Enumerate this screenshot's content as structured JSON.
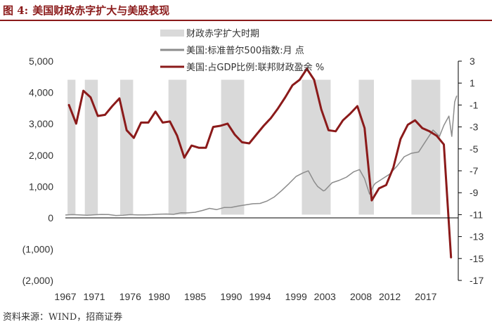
{
  "figure": {
    "number": "图 4:",
    "title": "美国财政赤字扩大与美股表现",
    "source": "资料来源：WIND，招商证券"
  },
  "chart_data": {
    "type": "line",
    "title": "美国财政赤字扩大与美股表现",
    "xlabel": "",
    "ylabel_left": "",
    "ylabel_right": "",
    "xlim": [
      1967,
      2021.5
    ],
    "x_ticks": [
      1967,
      1971,
      1976,
      1980,
      1985,
      1990,
      1994,
      1999,
      2003,
      2008,
      2012,
      2017
    ],
    "y_left_ticks": [
      5000,
      4000,
      3000,
      2000,
      1000,
      0,
      -1000,
      -2000
    ],
    "y_left_tick_labels": [
      "5,000",
      "4,000",
      "3,000",
      "2,000",
      "1,000",
      "0",
      "(1,000)",
      "(2,000)"
    ],
    "ylim_left": [
      -2000,
      5000
    ],
    "y_right_ticks": [
      3,
      1,
      -1,
      -3,
      -5,
      -7,
      -9,
      -11,
      -13,
      -15,
      -17
    ],
    "ylim_right": [
      -17,
      3
    ],
    "legend_position": "top-center",
    "legend": [
      "财政赤字扩大时期",
      "美国:标准普尔500指数:月 点",
      "美国:占GDP比例:联邦财政盈余 %"
    ],
    "colors": {
      "deficit_band": "#d9d9d9",
      "sp500": "#8c8c8c",
      "surplus": "#8b1a1a",
      "negative_tick": "#c00000"
    },
    "deficit_periods": [
      [
        1967.3,
        1968.4
      ],
      [
        1969.7,
        1971.5
      ],
      [
        1974.6,
        1976.4
      ],
      [
        1981.3,
        1983.8
      ],
      [
        1988.6,
        1991.8
      ],
      [
        1999.8,
        2003.8
      ],
      [
        2007.7,
        2009.8
      ],
      [
        2015.0,
        2019.0
      ]
    ],
    "series": [
      {
        "name": "美国:占GDP比例:联邦财政盈余 %",
        "axis": "right",
        "x": [
          1967.5,
          1968.5,
          1969.5,
          1970.5,
          1971.5,
          1972.5,
          1973.5,
          1974.5,
          1975.5,
          1976.5,
          1977.5,
          1978.5,
          1979.5,
          1980.5,
          1981.5,
          1982.5,
          1983.5,
          1984.5,
          1985.5,
          1986.5,
          1987.5,
          1988.5,
          1989.5,
          1990.5,
          1991.5,
          1992.5,
          1993.5,
          1994.5,
          1995.5,
          1996.5,
          1997.5,
          1998.5,
          1999.5,
          2000.5,
          2001.5,
          2002.5,
          2003.5,
          2004.5,
          2005.5,
          2006.5,
          2007.5,
          2008.5,
          2009.5,
          2010.5,
          2011.5,
          2012.5,
          2013.5,
          2014.5,
          2015.5,
          2016.5,
          2017.5,
          2018.5,
          2019.5,
          2020.5
        ],
        "values": [
          -1.0,
          -2.7,
          0.3,
          -0.3,
          -2.0,
          -1.9,
          -1.1,
          -0.4,
          -3.3,
          -4.0,
          -2.6,
          -2.6,
          -1.6,
          -2.6,
          -2.5,
          -3.8,
          -5.8,
          -4.7,
          -4.9,
          -4.9,
          -3.0,
          -2.9,
          -2.7,
          -3.7,
          -4.4,
          -4.5,
          -3.7,
          -2.9,
          -2.2,
          -1.3,
          -0.3,
          0.8,
          1.3,
          2.3,
          1.3,
          -1.4,
          -3.3,
          -3.4,
          -2.4,
          -1.8,
          -1.1,
          -3.1,
          -9.7,
          -8.6,
          -8.3,
          -6.7,
          -4.1,
          -2.8,
          -2.4,
          -3.1,
          -3.4,
          -3.8,
          -4.6,
          -14.9
        ]
      },
      {
        "name": "美国:标准普尔500指数:月 点",
        "axis": "left",
        "x": [
          1967,
          1968,
          1969,
          1970,
          1971,
          1972,
          1973,
          1974,
          1975,
          1976,
          1977,
          1978,
          1979,
          1980,
          1981,
          1982,
          1983,
          1984,
          1985,
          1986,
          1987,
          1988,
          1989,
          1990,
          1991,
          1992,
          1993,
          1994,
          1995,
          1996,
          1997,
          1998,
          1999,
          2000,
          2000.7,
          2001.5,
          2002,
          2002.8,
          2003,
          2004,
          2005,
          2006,
          2007,
          2007.8,
          2008.5,
          2009.2,
          2009.8,
          2010,
          2011,
          2012,
          2013,
          2014,
          2015,
          2016,
          2017,
          2018,
          2018.9,
          2019.5,
          2020.2,
          2020.6,
          2021,
          2021.3
        ],
        "values": [
          92,
          103,
          97,
          84,
          98,
          110,
          106,
          77,
          85,
          103,
          97,
          94,
          103,
          118,
          124,
          113,
          162,
          160,
          180,
          236,
          302,
          265,
          330,
          335,
          380,
          415,
          450,
          460,
          540,
          670,
          870,
          1090,
          1320,
          1440,
          1500,
          1160,
          1000,
          860,
          880,
          1120,
          1200,
          1300,
          1470,
          1540,
          1250,
          760,
          1050,
          1100,
          1250,
          1400,
          1650,
          1950,
          2060,
          2100,
          2450,
          2800,
          2600,
          2950,
          3250,
          2600,
          3700,
          3900
        ]
      }
    ]
  }
}
